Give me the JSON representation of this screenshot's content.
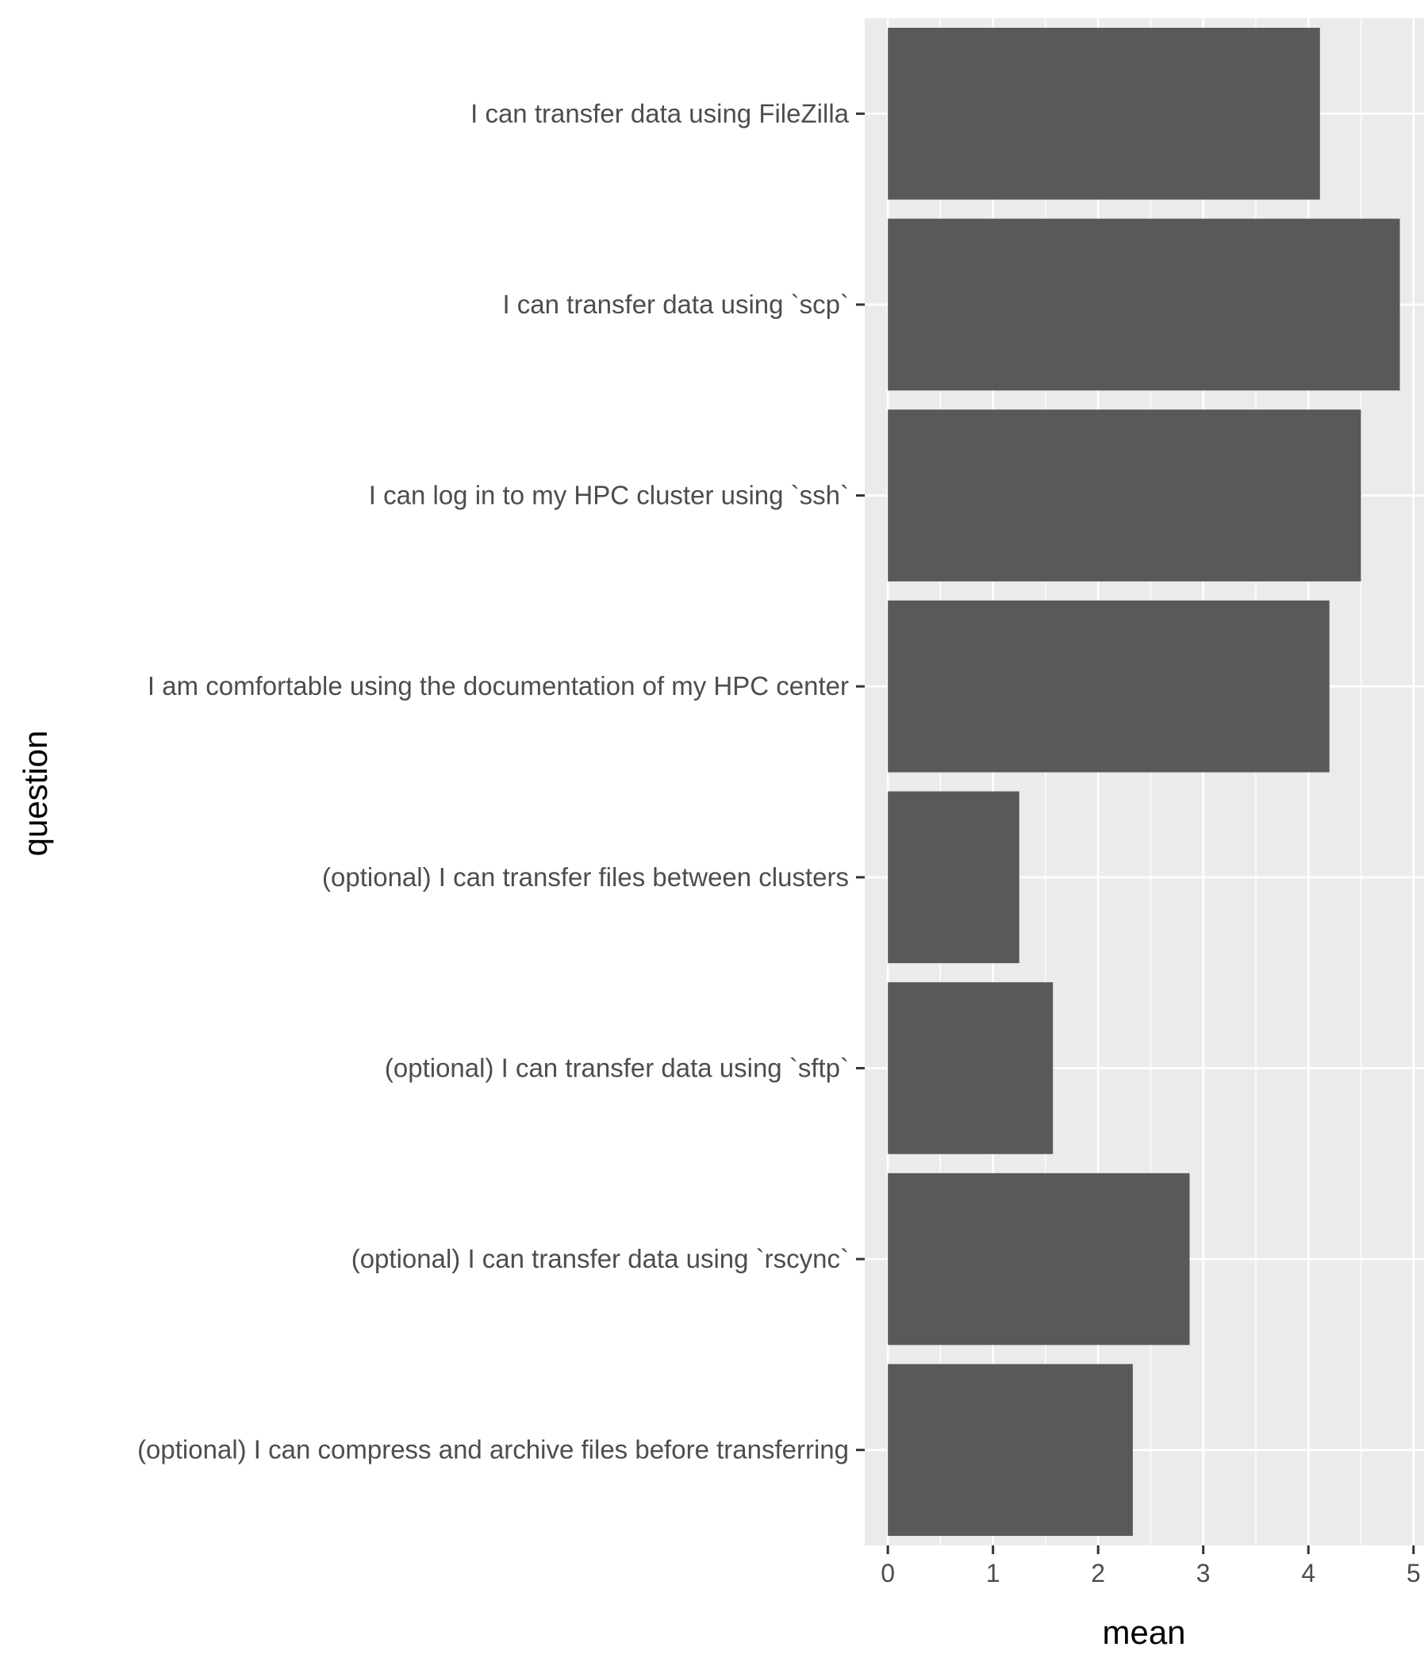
{
  "chart_data": {
    "type": "bar",
    "orientation": "horizontal",
    "xlabel": "mean",
    "ylabel": "question",
    "xlim": [
      -0.22,
      5.1
    ],
    "x_ticks": [
      0,
      1,
      2,
      3,
      4,
      5
    ],
    "x_tick_labels": [
      "0",
      "1",
      "2",
      "3",
      "4",
      "5"
    ],
    "grid": true,
    "bar_color": "#595959",
    "panel_background": "#ebebeb",
    "grid_color": "#ffffff",
    "categories": [
      "I can transfer data using FileZilla",
      "I can transfer data using `scp`",
      "I can log in to my HPC cluster using `ssh`",
      "I am comfortable using the documentation of my HPC center",
      "(optional) I can transfer files between clusters",
      "(optional) I can transfer data using `sftp`",
      "(optional) I can transfer data using `rscync`",
      "(optional) I can compress and archive files before transferring"
    ],
    "values": [
      4.11,
      4.87,
      4.5,
      4.2,
      1.25,
      1.57,
      2.87,
      2.33
    ]
  }
}
